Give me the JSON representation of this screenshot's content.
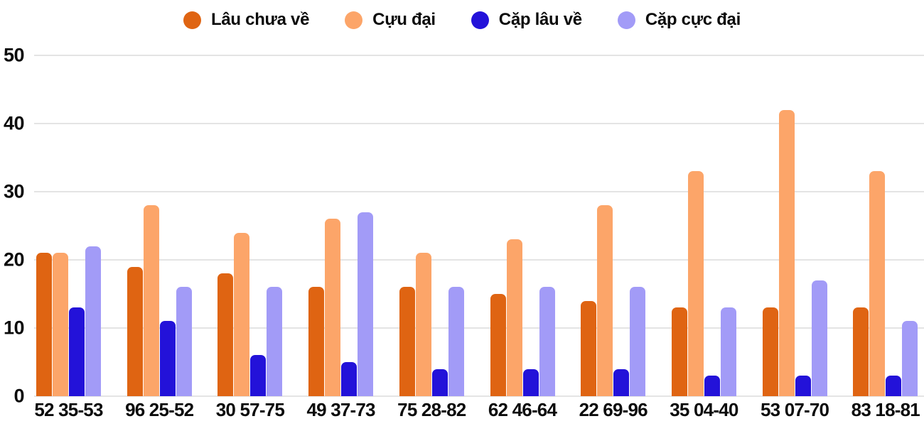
{
  "colors": {
    "background": "#ffffff",
    "gridline": "#e4e4e4",
    "text": "#0b0b0b"
  },
  "chart_data": {
    "type": "bar",
    "title": "",
    "xlabel": "",
    "ylabel": "",
    "grid": true,
    "legend_position": "top",
    "ylim": [
      0,
      50
    ],
    "yticks": [
      0,
      10,
      20,
      30,
      40,
      50
    ],
    "categories": [
      "52 35-53",
      "96 25-52",
      "30 57-75",
      "49 37-73",
      "75 28-82",
      "62 46-64",
      "22 69-96",
      "35 04-40",
      "53 07-70",
      "83 18-81"
    ],
    "series": [
      {
        "name": "Lâu chưa về",
        "color": "#df6412",
        "values": [
          21,
          19,
          18,
          16,
          16,
          15,
          14,
          13,
          13,
          13
        ]
      },
      {
        "name": "Cựu đại",
        "color": "#fca569",
        "values": [
          21,
          28,
          24,
          26,
          21,
          23,
          28,
          33,
          42,
          33
        ]
      },
      {
        "name": "Cặp lâu về",
        "color": "#2312d9",
        "values": [
          13,
          11,
          6,
          5,
          4,
          4,
          4,
          3,
          3,
          3
        ]
      },
      {
        "name": "Cặp cực đại",
        "color": "#a29bf7",
        "values": [
          22,
          16,
          16,
          27,
          16,
          16,
          16,
          13,
          17,
          11
        ]
      }
    ]
  }
}
